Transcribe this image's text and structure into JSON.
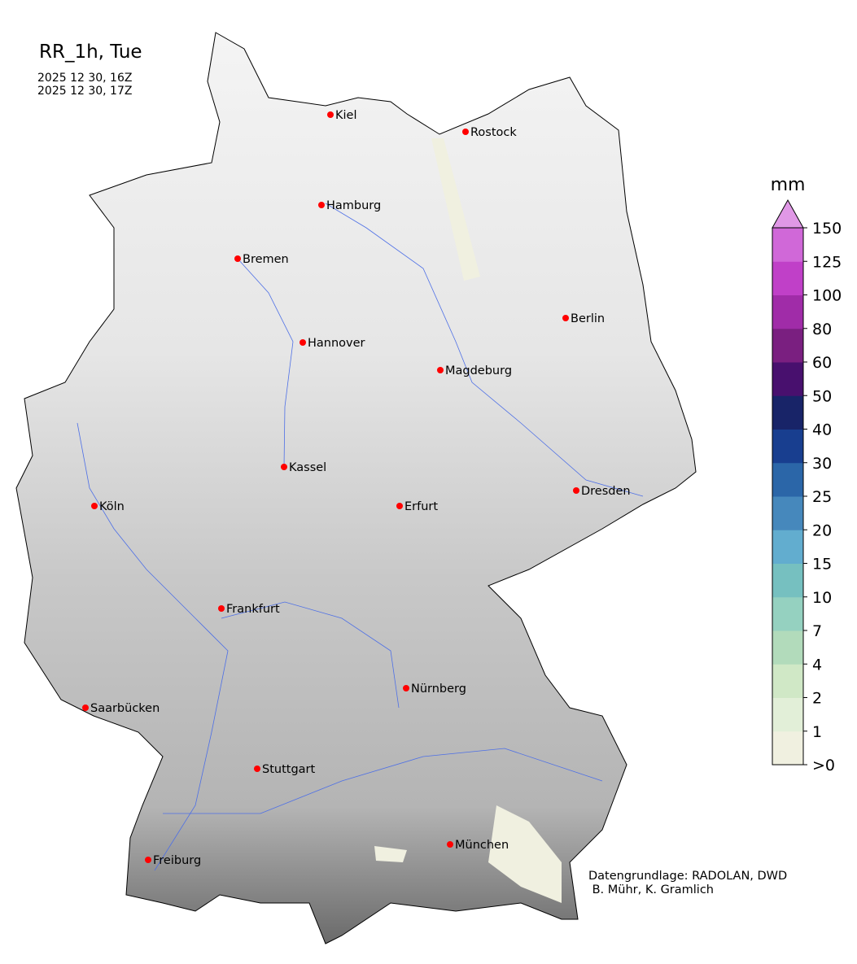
{
  "title": "RR_1h, Tue",
  "time_start": "2025 12 30, 16Z",
  "time_end": "2025 12 30, 17Z",
  "credit_line1": "Datengrundlage: RADOLAN, DWD",
  "credit_line2": " B. Mühr, K. Gramlich",
  "colorbar": {
    "unit": "mm",
    "extend": "max",
    "ticks": [
      ">0",
      "1",
      "2",
      "4",
      "7",
      "10",
      "15",
      "20",
      "25",
      "30",
      "40",
      "50",
      "60",
      "80",
      "100",
      "125",
      "150"
    ],
    "colors": [
      "#f0f0e0",
      "#e2efd8",
      "#d0e8c6",
      "#b2dbbb",
      "#95d1c0",
      "#76c0c0",
      "#62adcf",
      "#4688bc",
      "#2b66a8",
      "#183e8f",
      "#182468",
      "#48106e",
      "#7a1f80",
      "#a02ca8",
      "#c040c8",
      "#d068d8"
    ],
    "over_color": "#e098e6"
  },
  "map": {
    "land_color": "#d8d8d8",
    "river_color": "#4d6fe6",
    "city_color": "#ff0000",
    "cities": [
      {
        "name": "Kiel"
      },
      {
        "name": "Rostock"
      },
      {
        "name": "Hamburg"
      },
      {
        "name": "Bremen"
      },
      {
        "name": "Berlin"
      },
      {
        "name": "Hannover"
      },
      {
        "name": "Magdeburg"
      },
      {
        "name": "Kassel"
      },
      {
        "name": "Köln"
      },
      {
        "name": "Erfurt"
      },
      {
        "name": "Dresden"
      },
      {
        "name": "Frankfurt"
      },
      {
        "name": "Nürnberg"
      },
      {
        "name": "Saarbücken"
      },
      {
        "name": "Stuttgart"
      },
      {
        "name": "München"
      },
      {
        "name": "Freiburg"
      }
    ]
  }
}
